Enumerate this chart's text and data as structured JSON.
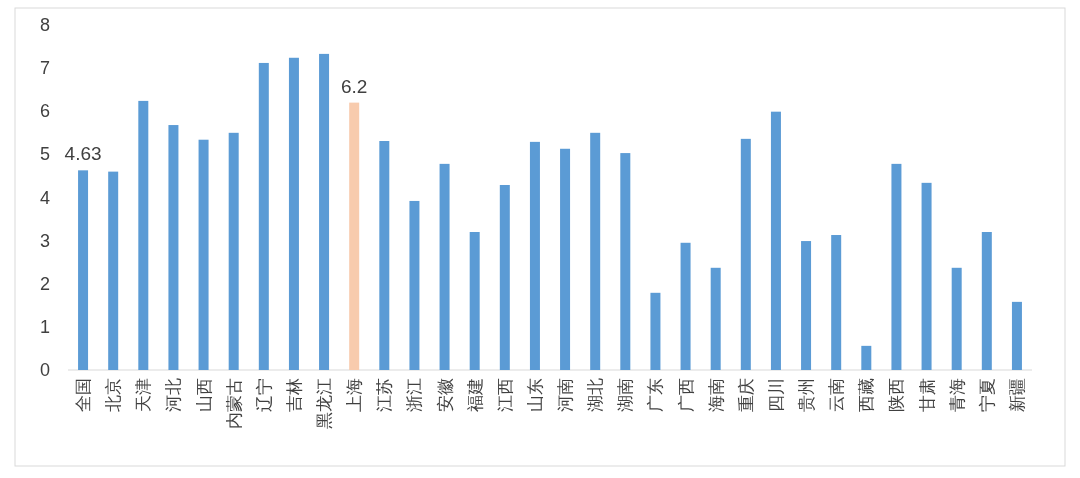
{
  "chart_data": {
    "type": "bar",
    "categories": [
      "全国",
      "北京",
      "天津",
      "河北",
      "山西",
      "内蒙古",
      "辽宁",
      "吉林",
      "黑龙江",
      "上海",
      "江苏",
      "浙江",
      "安徽",
      "福建",
      "江西",
      "山东",
      "河南",
      "湖北",
      "湖南",
      "广东",
      "广西",
      "海南",
      "重庆",
      "四川",
      "贵州",
      "云南",
      "西藏",
      "陕西",
      "甘肃",
      "青海",
      "宁夏",
      "新疆"
    ],
    "values": [
      4.63,
      4.6,
      6.24,
      5.68,
      5.34,
      5.5,
      7.12,
      7.24,
      7.33,
      6.2,
      5.31,
      3.92,
      4.78,
      3.2,
      4.29,
      5.29,
      5.13,
      5.5,
      5.03,
      1.79,
      2.95,
      2.37,
      5.36,
      5.99,
      2.99,
      3.13,
      0.56,
      4.78,
      4.34,
      2.37,
      3.2,
      1.58
    ],
    "colors": [
      "#5b9bd5",
      "#5b9bd5",
      "#5b9bd5",
      "#5b9bd5",
      "#5b9bd5",
      "#5b9bd5",
      "#5b9bd5",
      "#5b9bd5",
      "#5b9bd5",
      "#f8cbad",
      "#5b9bd5",
      "#5b9bd5",
      "#5b9bd5",
      "#5b9bd5",
      "#5b9bd5",
      "#5b9bd5",
      "#5b9bd5",
      "#5b9bd5",
      "#5b9bd5",
      "#5b9bd5",
      "#5b9bd5",
      "#5b9bd5",
      "#5b9bd5",
      "#5b9bd5",
      "#5b9bd5",
      "#5b9bd5",
      "#5b9bd5",
      "#5b9bd5",
      "#5b9bd5",
      "#5b9bd5",
      "#5b9bd5",
      "#5b9bd5"
    ],
    "value_labels": [
      "4.63",
      null,
      null,
      null,
      null,
      null,
      null,
      null,
      null,
      "6.2",
      null,
      null,
      null,
      null,
      null,
      null,
      null,
      null,
      null,
      null,
      null,
      null,
      null,
      null,
      null,
      null,
      null,
      null,
      null,
      null,
      null,
      null
    ],
    "ylim": [
      0,
      8
    ],
    "yticks": [
      0,
      1,
      2,
      3,
      4,
      5,
      6,
      7,
      8
    ],
    "grid": false
  }
}
